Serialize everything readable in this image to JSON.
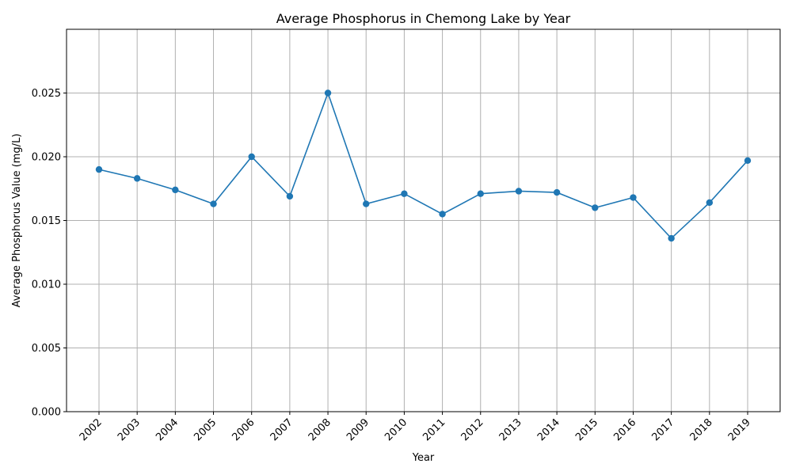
{
  "chart_data": {
    "type": "line",
    "title": "Average Phosphorus in Chemong Lake by Year",
    "xlabel": "Year",
    "ylabel": "Average Phosphorus Value (mg/L)",
    "categories": [
      "2002",
      "2003",
      "2004",
      "2005",
      "2006",
      "2007",
      "2008",
      "2009",
      "2010",
      "2011",
      "2012",
      "2013",
      "2014",
      "2015",
      "2016",
      "2017",
      "2018",
      "2019"
    ],
    "series": [
      {
        "values": [
          0.019,
          0.0183,
          0.0174,
          0.0163,
          0.02,
          0.0169,
          0.025,
          0.0163,
          0.0171,
          0.0155,
          0.0171,
          0.0173,
          0.0172,
          0.016,
          0.0168,
          0.0136,
          0.0164,
          0.0197
        ],
        "color": "#1f77b4",
        "marker": "circle"
      }
    ],
    "ylim": [
      0,
      0.03
    ],
    "yticks": [
      "0.000",
      "0.005",
      "0.010",
      "0.015",
      "0.020",
      "0.025"
    ],
    "grid": true,
    "legend": "none"
  }
}
